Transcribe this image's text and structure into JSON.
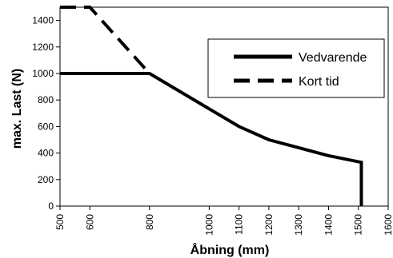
{
  "chart_data": {
    "type": "line",
    "xlabel": "Åbning (mm)",
    "ylabel": "max. Last (N)",
    "xlim": [
      500,
      1600
    ],
    "ylim": [
      0,
      1500
    ],
    "x_ticks": [
      500,
      600,
      800,
      1000,
      1100,
      1200,
      1300,
      1400,
      1500,
      1600
    ],
    "y_ticks": [
      0,
      200,
      400,
      600,
      800,
      1000,
      1200,
      1400
    ],
    "grid": false,
    "legend_position": "top-right",
    "series": [
      {
        "name": "Vedvarende",
        "style": "solid",
        "color": "#000000",
        "x": [
          500,
          800,
          1100,
          1200,
          1300,
          1400,
          1510,
          1510
        ],
        "y": [
          1000,
          1000,
          600,
          500,
          440,
          380,
          330,
          0
        ]
      },
      {
        "name": "Kort tid",
        "style": "dashed",
        "color": "#000000",
        "x": [
          500,
          600,
          800
        ],
        "y": [
          1500,
          1500,
          1000
        ]
      }
    ]
  }
}
